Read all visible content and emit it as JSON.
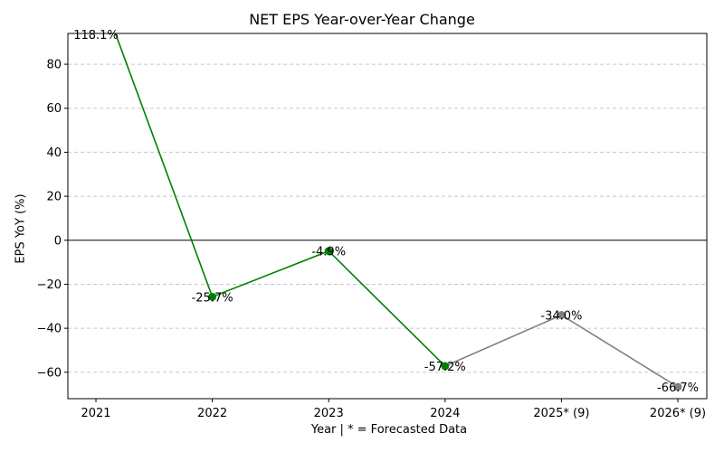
{
  "chart_data": {
    "type": "line",
    "title": "NET EPS Year-over-Year Change",
    "xlabel": "Year | * = Forecasted Data",
    "ylabel": "EPS YoY (%)",
    "categories": [
      "2021",
      "2022",
      "2023",
      "2024",
      "2025* (9)",
      "2026* (9)"
    ],
    "values": [
      118.1,
      -25.7,
      -4.9,
      -57.2,
      -34.0,
      -66.7
    ],
    "data_labels": [
      "118.1%",
      "-25.7%",
      "-4.9%",
      "-57.2%",
      "-34.0%",
      "-66.7%"
    ],
    "segments": [
      {
        "kind": "actual",
        "from": 0,
        "to": 3,
        "color": "#008000"
      },
      {
        "kind": "forecast",
        "from": 3,
        "to": 5,
        "color": "#808080"
      }
    ],
    "ylim": [
      -72,
      94
    ],
    "yticks": [
      80,
      60,
      40,
      20,
      0,
      -20,
      -40,
      -60
    ],
    "ytick_labels": [
      "80",
      "60",
      "40",
      "20",
      "0",
      "−20",
      "−40",
      "−60"
    ],
    "grid": "horizontal-dashed",
    "zero_line": true
  }
}
